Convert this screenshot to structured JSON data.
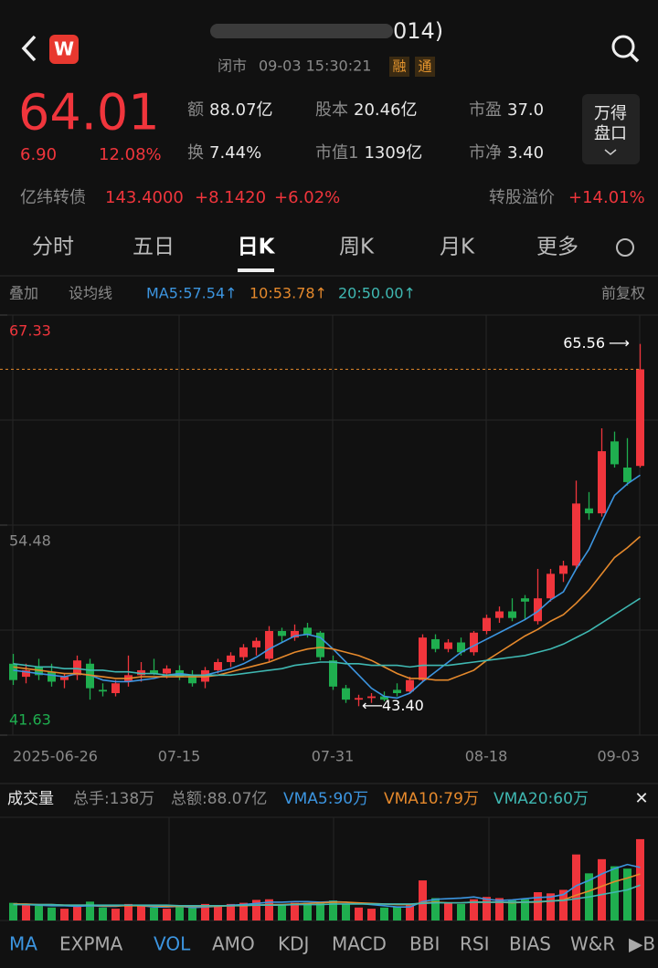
{
  "header": {
    "title": "014)",
    "status": "闭市",
    "time": "09-03 15:30:21",
    "badges": [
      "融",
      "通"
    ],
    "price": "64.01",
    "change": "6.90",
    "change_pct": "12.08%",
    "stats": [
      {
        "label": "额",
        "value": "88.07亿"
      },
      {
        "label": "股本",
        "value": "20.46亿"
      },
      {
        "label": "市盈",
        "value": "37.0"
      },
      {
        "label": "换",
        "value": "7.44%"
      },
      {
        "label": "市值1",
        "value": "1309亿"
      },
      {
        "label": "市净",
        "value": "3.40"
      }
    ],
    "button": [
      "万得",
      "盘口"
    ]
  },
  "bond": {
    "name": "亿纬转债",
    "price": "143.4000",
    "change": "+8.1420",
    "pct": "+6.02%",
    "premium_label": "转股溢价",
    "premium": "+14.01%"
  },
  "tabs": [
    "分时",
    "五日",
    "日K",
    "周K",
    "月K",
    "更多"
  ],
  "toolbar": {
    "left": [
      "叠加",
      "设均线"
    ],
    "right": "前复权"
  },
  "indicator_tabs": [
    "MA",
    "EXPMA",
    "VOL",
    "AMO",
    "KDJ",
    "MACD",
    "BBI",
    "RSI",
    "BIAS",
    "W&R",
    "▶B"
  ],
  "chart_data": [
    {
      "type": "candlestick",
      "categories": [
        "2025-06-26",
        null,
        null,
        null,
        null,
        null,
        null,
        null,
        null,
        null,
        null,
        null,
        null,
        "07-15",
        null,
        null,
        null,
        null,
        null,
        null,
        null,
        null,
        null,
        null,
        null,
        "07-31",
        null,
        null,
        null,
        null,
        null,
        null,
        null,
        null,
        null,
        null,
        null,
        "08-18",
        null,
        null,
        null,
        null,
        null,
        null,
        null,
        null,
        null,
        null,
        null,
        "09-03"
      ],
      "open": [
        46.0,
        45.2,
        45.8,
        45.5,
        45.0,
        45.3,
        46.0,
        44.4,
        44.2,
        44.9,
        45.3,
        45.6,
        45.4,
        45.6,
        45.3,
        44.9,
        45.6,
        46.1,
        46.4,
        47.0,
        46.3,
        48.0,
        47.6,
        48.2,
        47.9,
        46.2,
        44.5,
        43.8,
        43.9,
        44.0,
        44.4,
        44.3,
        45.0,
        47.5,
        46.9,
        47.3,
        46.7,
        48.0,
        48.8,
        49.2,
        50.0,
        48.6,
        50.0,
        51.5,
        52.0,
        55.5,
        55.2,
        59.6,
        58.0,
        58.1
      ],
      "high": [
        46.6,
        46.0,
        46.3,
        46.0,
        45.4,
        46.5,
        46.3,
        44.8,
        45.0,
        46.5,
        46.1,
        46.3,
        45.9,
        45.9,
        45.6,
        45.8,
        46.3,
        46.7,
        47.2,
        47.6,
        48.3,
        48.2,
        48.4,
        48.5,
        48.0,
        46.5,
        44.7,
        44.1,
        44.2,
        44.3,
        44.8,
        45.2,
        47.8,
        47.8,
        47.5,
        47.6,
        48.0,
        49.0,
        49.5,
        50.0,
        50.2,
        51.8,
        51.8,
        52.3,
        57.2,
        56.5,
        60.4,
        60.2,
        59.8,
        65.56
      ],
      "low": [
        44.7,
        44.8,
        45.0,
        44.6,
        44.5,
        45.0,
        43.8,
        44.0,
        44.0,
        44.6,
        44.9,
        45.3,
        45.1,
        45.0,
        44.6,
        44.5,
        45.4,
        45.8,
        46.2,
        46.5,
        46.1,
        47.3,
        47.4,
        47.6,
        46.2,
        44.4,
        43.6,
        43.4,
        43.6,
        43.7,
        44.0,
        44.2,
        44.9,
        46.7,
        46.7,
        46.5,
        46.5,
        47.8,
        48.5,
        48.6,
        48.7,
        48.4,
        49.8,
        51.0,
        51.8,
        54.8,
        55.0,
        58.0,
        56.9,
        58.0
      ],
      "close": [
        45.0,
        45.6,
        45.3,
        44.9,
        45.2,
        46.2,
        44.5,
        44.3,
        44.8,
        45.3,
        45.6,
        45.4,
        45.7,
        45.2,
        44.8,
        45.6,
        46.1,
        46.5,
        47.0,
        47.4,
        48.0,
        47.7,
        48.0,
        47.8,
        46.4,
        44.6,
        43.8,
        43.9,
        44.0,
        43.8,
        44.2,
        45.0,
        47.6,
        46.9,
        47.3,
        46.7,
        47.9,
        48.8,
        49.2,
        48.8,
        49.8,
        50.0,
        51.5,
        52.0,
        55.8,
        55.2,
        59.0,
        58.2,
        57.11,
        64.01
      ],
      "up_color": "#f0353c",
      "down_color": "#1fae4f",
      "ylim": [
        41.63,
        67.33
      ],
      "yticks": [
        41.63,
        54.48,
        67.33
      ],
      "last_price_line": true,
      "annotations": [
        {
          "text": "65.56"
        },
        {
          "text": "43.40"
        }
      ],
      "series": [
        {
          "name": "MA5:57.54↑",
          "color": "#3c95e0",
          "values": [
            45.6,
            45.5,
            45.4,
            45.3,
            45.2,
            45.4,
            45.3,
            45.0,
            44.9,
            44.9,
            45.0,
            45.1,
            45.3,
            45.4,
            45.3,
            45.3,
            45.5,
            45.7,
            46.0,
            46.4,
            46.9,
            47.3,
            47.7,
            47.8,
            47.6,
            46.9,
            46.1,
            45.3,
            44.5,
            44.0,
            43.9,
            44.2,
            44.9,
            45.5,
            46.1,
            46.7,
            47.1,
            47.5,
            47.9,
            48.3,
            48.7,
            49.2,
            49.9,
            50.4,
            51.8,
            53.0,
            54.7,
            56.3,
            57.0,
            57.54
          ]
        },
        {
          "name": "10:53.78↑",
          "color": "#e5892c",
          "values": [
            45.8,
            45.7,
            45.6,
            45.5,
            45.4,
            45.4,
            45.3,
            45.2,
            45.1,
            45.1,
            45.2,
            45.2,
            45.2,
            45.2,
            45.2,
            45.2,
            45.3,
            45.5,
            45.7,
            45.9,
            46.1,
            46.4,
            46.7,
            46.9,
            47.0,
            46.9,
            46.7,
            46.5,
            46.2,
            45.8,
            45.4,
            45.1,
            45.1,
            45.0,
            45.0,
            45.3,
            45.6,
            46.2,
            46.7,
            47.2,
            47.7,
            48.1,
            48.6,
            49.0,
            49.7,
            50.5,
            51.5,
            52.5,
            53.1,
            53.78
          ]
        },
        {
          "name": "20:50.00↑",
          "color": "#3fb8b2",
          "values": [
            46.0,
            45.9,
            45.8,
            45.8,
            45.7,
            45.7,
            45.6,
            45.6,
            45.5,
            45.5,
            45.4,
            45.4,
            45.3,
            45.3,
            45.3,
            45.3,
            45.3,
            45.3,
            45.4,
            45.5,
            45.6,
            45.7,
            45.9,
            46.0,
            46.1,
            46.1,
            46.0,
            46.0,
            45.9,
            45.9,
            45.9,
            45.8,
            45.9,
            45.9,
            45.9,
            46.0,
            46.1,
            46.2,
            46.3,
            46.4,
            46.5,
            46.7,
            46.9,
            47.2,
            47.6,
            48.0,
            48.5,
            49.0,
            49.5,
            50.0
          ]
        }
      ]
    },
    {
      "type": "bar",
      "title": "成交量",
      "stats": [
        "总手:138万",
        "总额:88.07亿"
      ],
      "values": [
        30,
        28,
        25,
        22,
        20,
        26,
        32,
        22,
        20,
        28,
        25,
        22,
        20,
        24,
        22,
        28,
        26,
        28,
        30,
        35,
        36,
        28,
        30,
        30,
        32,
        34,
        28,
        22,
        20,
        22,
        24,
        26,
        68,
        38,
        30,
        28,
        36,
        40,
        38,
        34,
        36,
        48,
        46,
        52,
        112,
        80,
        104,
        92,
        88,
        138
      ],
      "ylim": [
        0,
        175
      ],
      "series": [
        {
          "name": "VMA5:90万",
          "color": "#3c95e0",
          "values": [
            28,
            27,
            26,
            25,
            25,
            24,
            25,
            24,
            24,
            26,
            25,
            23,
            23,
            24,
            22,
            23,
            24,
            26,
            27,
            29,
            31,
            31,
            32,
            32,
            31,
            32,
            31,
            29,
            27,
            25,
            23,
            23,
            32,
            36,
            37,
            38,
            40,
            36,
            34,
            35,
            37,
            39,
            40,
            44,
            59,
            68,
            79,
            88,
            95,
            90
          ]
        },
        {
          "name": "VMA10:79万",
          "color": "#e5892c",
          "values": [
            28,
            28,
            27,
            27,
            26,
            26,
            26,
            25,
            25,
            25,
            25,
            25,
            24,
            24,
            24,
            24,
            24,
            25,
            25,
            26,
            27,
            27,
            28,
            29,
            30,
            31,
            31,
            30,
            29,
            28,
            27,
            27,
            30,
            31,
            30,
            30,
            31,
            31,
            31,
            30,
            31,
            31,
            33,
            35,
            43,
            50,
            58,
            66,
            72,
            79
          ]
        },
        {
          "name": "VMA20:60万",
          "color": "#3fb8b2",
          "values": [
            27,
            27,
            27,
            27,
            26,
            26,
            26,
            26,
            26,
            26,
            26,
            26,
            26,
            25,
            25,
            25,
            25,
            25,
            26,
            26,
            26,
            26,
            27,
            27,
            27,
            28,
            28,
            28,
            28,
            28,
            28,
            28,
            29,
            30,
            30,
            30,
            31,
            31,
            31,
            31,
            31,
            32,
            33,
            34,
            37,
            40,
            44,
            48,
            52,
            60
          ]
        }
      ]
    }
  ]
}
